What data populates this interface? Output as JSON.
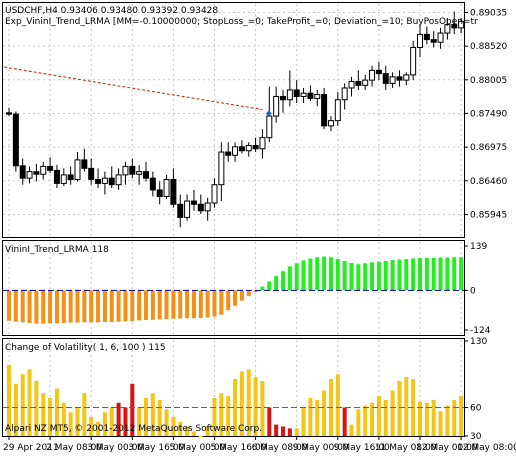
{
  "header": {
    "line1": "USDCHF,H4  0.93406 0.93480 0.93392 0.93428",
    "line2": "Exp_VininI_Trend_LRMA [MM=-0.10000000; StopLoss_=0; TakeProfit_=0; Deviation_=10; BuyPosOpen=tr"
  },
  "indicator_label": "VininI_Trend_LRMA 118",
  "volatility_label": "Change of Volatility( 1, 6, 100 ) 115",
  "copyright": "Alpari NZ MT5, © 2001-2012 MetaQuotes Software Corp.",
  "colors": {
    "bull_candle": "#ffffff",
    "bear_candle": "#000000",
    "indicator_up": "#22ee22",
    "indicator_down": "#f39016",
    "volatility_main": "#f2c516",
    "volatility_alert": "#dd1111",
    "level_line": "#0000aa",
    "level_line_red": "#ee00ee",
    "trend_line": "#cc2200",
    "arrow": "#1166cc"
  },
  "chart_data": [
    {
      "type": "candlestick",
      "name": "USDCHF,H4",
      "ylim": [
        0.856,
        0.8918
      ],
      "yticks": [
        "0.89035",
        "0.88520",
        "0.88005",
        "0.87490",
        "0.86975",
        "0.86460",
        "0.85945"
      ],
      "ytick_values": [
        0.89035,
        0.8852,
        0.88005,
        0.8749,
        0.86975,
        0.8646,
        0.85945
      ],
      "xticks": [
        "29 Apr 2011",
        "2 May 08:00",
        "3 May 00:00",
        "3 May 16:00",
        "5 May 00:00",
        "5 May 16:00",
        "6 May 08:00",
        "9 May 00:00",
        "9 May 16:00",
        "11 May 08:00",
        "12 May 00:00",
        "12 May 08:00"
      ],
      "ohlc": [
        [
          0.875,
          0.8758,
          0.8745,
          0.8748
        ],
        [
          0.8748,
          0.8752,
          0.866,
          0.8669
        ],
        [
          0.8669,
          0.868,
          0.864,
          0.865
        ],
        [
          0.865,
          0.8668,
          0.8642,
          0.866
        ],
        [
          0.866,
          0.8672,
          0.8645,
          0.8656
        ],
        [
          0.8656,
          0.8675,
          0.8648,
          0.8668
        ],
        [
          0.8668,
          0.8682,
          0.8658,
          0.8662
        ],
        [
          0.8662,
          0.867,
          0.8635,
          0.8642
        ],
        [
          0.8642,
          0.8665,
          0.8638,
          0.8655
        ],
        [
          0.8655,
          0.8668,
          0.864,
          0.8648
        ],
        [
          0.8648,
          0.869,
          0.8645,
          0.8678
        ],
        [
          0.8678,
          0.8695,
          0.866,
          0.8665
        ],
        [
          0.8665,
          0.868,
          0.864,
          0.8648
        ],
        [
          0.8648,
          0.8665,
          0.8635,
          0.8642
        ],
        [
          0.8642,
          0.866,
          0.8625,
          0.865
        ],
        [
          0.865,
          0.8668,
          0.8635,
          0.864
        ],
        [
          0.864,
          0.8665,
          0.8632,
          0.8655
        ],
        [
          0.8655,
          0.8675,
          0.864,
          0.8668
        ],
        [
          0.8668,
          0.868,
          0.865,
          0.8656
        ],
        [
          0.8656,
          0.867,
          0.864,
          0.866
        ],
        [
          0.866,
          0.8675,
          0.8645,
          0.865
        ],
        [
          0.865,
          0.866,
          0.8622,
          0.8632
        ],
        [
          0.8632,
          0.8645,
          0.861,
          0.8622
        ],
        [
          0.8622,
          0.8655,
          0.8618,
          0.8648
        ],
        [
          0.8648,
          0.8665,
          0.8605,
          0.861
        ],
        [
          0.861,
          0.8625,
          0.8575,
          0.859
        ],
        [
          0.859,
          0.8625,
          0.8585,
          0.8615
        ],
        [
          0.8615,
          0.8632,
          0.86,
          0.861
        ],
        [
          0.861,
          0.8625,
          0.8595,
          0.86
        ],
        [
          0.86,
          0.862,
          0.8585,
          0.8612
        ],
        [
          0.8612,
          0.865,
          0.8605,
          0.864
        ],
        [
          0.864,
          0.8705,
          0.8615,
          0.869
        ],
        [
          0.869,
          0.8705,
          0.8675,
          0.8685
        ],
        [
          0.8685,
          0.8705,
          0.8675,
          0.8698
        ],
        [
          0.8698,
          0.8708,
          0.8688,
          0.8692
        ],
        [
          0.8692,
          0.8705,
          0.8683,
          0.87
        ],
        [
          0.87,
          0.8712,
          0.869,
          0.8695
        ],
        [
          0.8695,
          0.8725,
          0.868,
          0.8712
        ],
        [
          0.8712,
          0.879,
          0.8705,
          0.8745
        ],
        [
          0.8745,
          0.879,
          0.8735,
          0.8775
        ],
        [
          0.8775,
          0.8785,
          0.875,
          0.877
        ],
        [
          0.877,
          0.8815,
          0.876,
          0.8785
        ],
        [
          0.8785,
          0.88,
          0.8765,
          0.8775
        ],
        [
          0.8775,
          0.8788,
          0.8765,
          0.878
        ],
        [
          0.878,
          0.8792,
          0.8768,
          0.8772
        ],
        [
          0.8772,
          0.8785,
          0.876,
          0.8778
        ],
        [
          0.8778,
          0.8788,
          0.8725,
          0.873
        ],
        [
          0.873,
          0.8745,
          0.8722,
          0.8738
        ],
        [
          0.8738,
          0.8782,
          0.873,
          0.877
        ],
        [
          0.877,
          0.8795,
          0.8755,
          0.8788
        ],
        [
          0.8788,
          0.8805,
          0.8775,
          0.8798
        ],
        [
          0.8798,
          0.8815,
          0.8785,
          0.8792
        ],
        [
          0.8792,
          0.8808,
          0.8785,
          0.88
        ],
        [
          0.88,
          0.8822,
          0.879,
          0.8815
        ],
        [
          0.8815,
          0.8828,
          0.88,
          0.881
        ],
        [
          0.881,
          0.8822,
          0.8785,
          0.8795
        ],
        [
          0.8795,
          0.8812,
          0.8788,
          0.8805
        ],
        [
          0.8805,
          0.8815,
          0.879,
          0.88
        ],
        [
          0.88,
          0.8812,
          0.8792,
          0.8808
        ],
        [
          0.8808,
          0.886,
          0.88,
          0.885
        ],
        [
          0.885,
          0.8885,
          0.8835,
          0.887
        ],
        [
          0.887,
          0.8882,
          0.8855,
          0.8862
        ],
        [
          0.8862,
          0.8875,
          0.885,
          0.8858
        ],
        [
          0.8858,
          0.888,
          0.8848,
          0.8872
        ],
        [
          0.8872,
          0.8895,
          0.8862,
          0.8885
        ],
        [
          0.8885,
          0.8905,
          0.887,
          0.888
        ],
        [
          0.888,
          0.8895,
          0.8872,
          0.889
        ]
      ],
      "trend_line": {
        "from": [
          0,
          0.882
        ],
        "to": [
          37,
          0.8755
        ]
      },
      "arrow_at": {
        "index": 38,
        "value": 0.8749
      }
    },
    {
      "type": "bar",
      "name": "VininI_Trend_LRMA 118",
      "ylim": [
        -124,
        139
      ],
      "yticks": [
        "139",
        "0",
        "-124"
      ],
      "ytick_values": [
        139,
        0,
        -124
      ],
      "values": [
        -95,
        -98,
        -100,
        -102,
        -104,
        -104,
        -103,
        -103,
        -102,
        -101,
        -101,
        -100,
        -100,
        -100,
        -99,
        -99,
        -98,
        -97,
        -96,
        -94,
        -93,
        -92,
        -91,
        -90,
        -89,
        -88,
        -87,
        -87,
        -86,
        -85,
        -82,
        -76,
        -62,
        -48,
        -32,
        -18,
        -5,
        12,
        28,
        45,
        60,
        75,
        85,
        94,
        100,
        104,
        106,
        104,
        98,
        92,
        86,
        82,
        85,
        88,
        90,
        92,
        95,
        97,
        98,
        100,
        101,
        102,
        102,
        103,
        103,
        104,
        104
      ],
      "levels": [
        0
      ]
    },
    {
      "type": "bar",
      "name": "Change of Volatility( 1, 6, 100 ) 115",
      "ylim": [
        30,
        130
      ],
      "yticks": [
        "130",
        "60",
        "30"
      ],
      "ytick_values": [
        130,
        60,
        30
      ],
      "values": [
        105,
        85,
        95,
        100,
        88,
        75,
        70,
        80,
        65,
        55,
        60,
        75,
        50,
        45,
        55,
        60,
        65,
        60,
        85,
        60,
        70,
        75,
        68,
        58,
        50,
        45,
        40,
        35,
        30,
        40,
        70,
        75,
        72,
        90,
        98,
        100,
        92,
        88,
        60,
        42,
        40,
        38,
        38,
        60,
        70,
        68,
        78,
        90,
        95,
        60,
        42,
        58,
        62,
        65,
        72,
        68,
        78,
        88,
        92,
        90,
        66,
        65,
        68,
        56,
        62,
        68,
        72
      ],
      "alert_indices": [
        16,
        17,
        18,
        38,
        39,
        40,
        41,
        49
      ],
      "levels": [
        60
      ]
    }
  ]
}
